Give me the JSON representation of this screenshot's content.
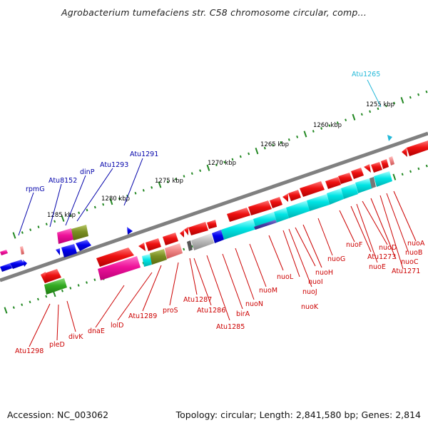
{
  "title": "Agrobacterium tumefaciens str. C58 chromosome circular, comp...",
  "footer": {
    "accession": "Accession: NC_003062",
    "topology": "Topology: circular; Length: 2,841,580 bp; Genes: 2,814"
  },
  "colors": {
    "backbone": "#808080",
    "label_forward": "#0000aa",
    "label_reverse": "#cc0000",
    "label_highlight": "#22b8d8",
    "tick": "#228822",
    "red_gene": "#ee1111",
    "blue_gene": "#0000ee",
    "cyan_gene": "#00e5e5",
    "magenta_gene": "#ee1199",
    "olive_gene": "#7a8f22",
    "green_gene": "#33aa22"
  },
  "scale": {
    "ticks": [
      "1285 kbp",
      "1280 kbp",
      "1275 kbp",
      "1270 kbp",
      "1265 kbp",
      "1260 kbp",
      "1255 kbp"
    ]
  },
  "labels": {
    "forward": [
      "rpmG",
      "Atu8152",
      "dinP",
      "Atu1293",
      "Atu1291"
    ],
    "highlight": [
      "Atu1265"
    ],
    "reverse": [
      "Atu1298",
      "pleD",
      "divK",
      "dnaE",
      "lolD",
      "Atu1289",
      "proS",
      "Atu1287",
      "Atu1286",
      "Atu1285",
      "birA",
      "nuoN",
      "nuoM",
      "nuoL",
      "nuoI",
      "nuoH",
      "nuoJ",
      "nuoK",
      "nuoG",
      "nuoF",
      "Atu1273",
      "nuoE",
      "nuoD",
      "nuoC",
      "Atu1271",
      "nuoB",
      "nuoA"
    ]
  }
}
